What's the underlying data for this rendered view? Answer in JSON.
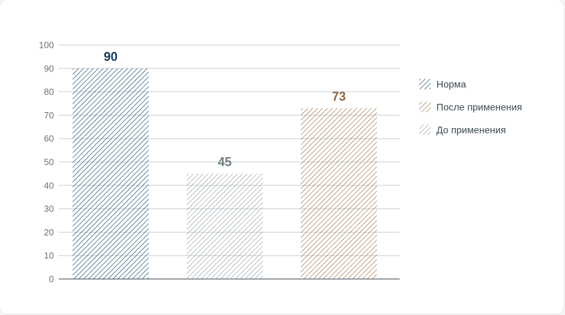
{
  "chart_data": {
    "type": "bar",
    "categories": [
      "Норма",
      "До применения",
      "После применения"
    ],
    "values": [
      90,
      45,
      73
    ],
    "data_labels": [
      "90",
      "45",
      "73"
    ],
    "colors": [
      "#1f4e6b",
      "#9aa5ab",
      "#a07650"
    ],
    "label_colors": [
      "#123a5c",
      "#717c82",
      "#93673f"
    ],
    "ylim": [
      0,
      100
    ],
    "y_ticks": [
      0,
      10,
      20,
      30,
      40,
      50,
      60,
      70,
      80,
      90,
      100
    ],
    "grid": true,
    "legend_position": "right",
    "legend": [
      {
        "label": "Норма",
        "color": "#1f4e6b"
      },
      {
        "label": "После применения",
        "color": "#a07650"
      },
      {
        "label": "До применения",
        "color": "#9aa5ab"
      }
    ],
    "bar_style": "diagonal-hatch"
  }
}
